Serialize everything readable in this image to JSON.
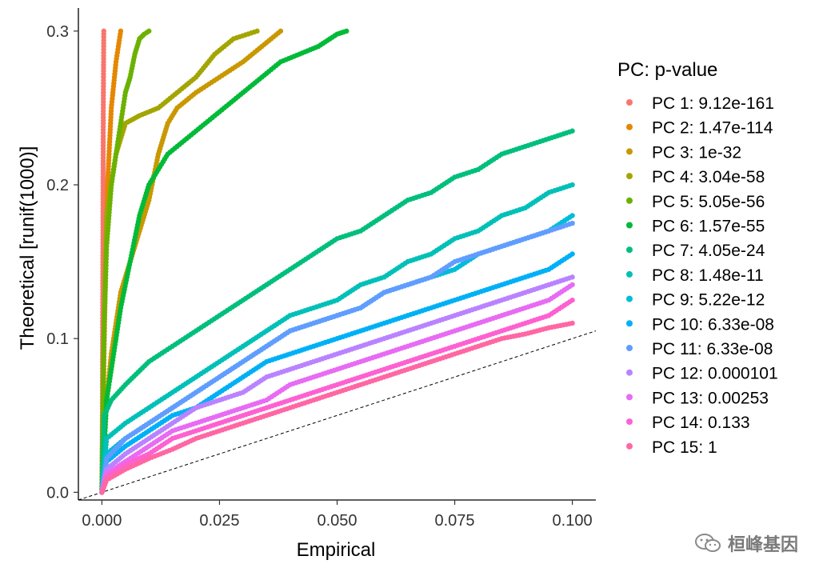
{
  "chart_data": {
    "type": "scatter",
    "title": "",
    "xlabel": "Empirical",
    "ylabel": "Theoretical [runif(1000)]",
    "xlim": [
      -0.005,
      0.105
    ],
    "ylim": [
      -0.005,
      0.315
    ],
    "x_ticks": [
      "0.000",
      "0.025",
      "0.050",
      "0.075",
      "0.100"
    ],
    "x_tick_values": [
      0,
      0.025,
      0.05,
      0.075,
      0.1
    ],
    "y_ticks": [
      "0.0",
      "0.1",
      "0.2",
      "0.3"
    ],
    "y_tick_values": [
      0,
      0.1,
      0.2,
      0.3
    ],
    "reference_line": {
      "intercept": 0,
      "slope": 1,
      "style": "dashed"
    },
    "legend": {
      "title": "PC: p-value",
      "position": "right"
    },
    "series": [
      {
        "name": "PC 1: 9.12e-161",
        "color": "#F8766D",
        "values": [
          [
            0,
            0
          ],
          [
            0.0001,
            0.05
          ],
          [
            0.0002,
            0.15
          ],
          [
            0.0003,
            0.25
          ],
          [
            0.0004,
            0.3
          ]
        ]
      },
      {
        "name": "PC 2: 1.47e-114",
        "color": "#E58700",
        "values": [
          [
            0,
            0
          ],
          [
            0.0004,
            0.08
          ],
          [
            0.0008,
            0.15
          ],
          [
            0.0012,
            0.2
          ],
          [
            0.002,
            0.25
          ],
          [
            0.003,
            0.28
          ],
          [
            0.004,
            0.3
          ]
        ]
      },
      {
        "name": "PC 3: 1e-32",
        "color": "#C99800",
        "values": [
          [
            0,
            0
          ],
          [
            0.0005,
            0.03
          ],
          [
            0.001,
            0.06
          ],
          [
            0.002,
            0.09
          ],
          [
            0.003,
            0.11
          ],
          [
            0.004,
            0.13
          ],
          [
            0.006,
            0.15
          ],
          [
            0.008,
            0.17
          ],
          [
            0.01,
            0.19
          ],
          [
            0.012,
            0.22
          ],
          [
            0.014,
            0.24
          ],
          [
            0.016,
            0.25
          ],
          [
            0.02,
            0.26
          ],
          [
            0.025,
            0.27
          ],
          [
            0.03,
            0.28
          ],
          [
            0.034,
            0.29
          ],
          [
            0.036,
            0.295
          ],
          [
            0.038,
            0.3
          ]
        ]
      },
      {
        "name": "PC 4: 3.04e-58",
        "color": "#A3A500",
        "values": [
          [
            0,
            0
          ],
          [
            0.0003,
            0.08
          ],
          [
            0.0007,
            0.14
          ],
          [
            0.001,
            0.18
          ],
          [
            0.002,
            0.2
          ],
          [
            0.003,
            0.22
          ],
          [
            0.005,
            0.24
          ],
          [
            0.008,
            0.245
          ],
          [
            0.012,
            0.25
          ],
          [
            0.016,
            0.26
          ],
          [
            0.02,
            0.27
          ],
          [
            0.024,
            0.285
          ],
          [
            0.028,
            0.295
          ],
          [
            0.033,
            0.3
          ]
        ]
      },
      {
        "name": "PC 5: 5.05e-56",
        "color": "#6BB100",
        "values": [
          [
            0,
            0
          ],
          [
            0.0004,
            0.1
          ],
          [
            0.001,
            0.16
          ],
          [
            0.002,
            0.2
          ],
          [
            0.003,
            0.22
          ],
          [
            0.004,
            0.24
          ],
          [
            0.005,
            0.26
          ],
          [
            0.006,
            0.27
          ],
          [
            0.007,
            0.285
          ],
          [
            0.008,
            0.295
          ],
          [
            0.009,
            0.298
          ],
          [
            0.01,
            0.3
          ]
        ]
      },
      {
        "name": "PC 6: 1.57e-55",
        "color": "#00BA38",
        "values": [
          [
            0,
            0
          ],
          [
            0.0005,
            0.03
          ],
          [
            0.001,
            0.06
          ],
          [
            0.002,
            0.08
          ],
          [
            0.003,
            0.1
          ],
          [
            0.004,
            0.12
          ],
          [
            0.006,
            0.15
          ],
          [
            0.008,
            0.18
          ],
          [
            0.01,
            0.2
          ],
          [
            0.014,
            0.22
          ],
          [
            0.018,
            0.23
          ],
          [
            0.022,
            0.24
          ],
          [
            0.026,
            0.25
          ],
          [
            0.03,
            0.26
          ],
          [
            0.034,
            0.27
          ],
          [
            0.038,
            0.28
          ],
          [
            0.042,
            0.285
          ],
          [
            0.046,
            0.29
          ],
          [
            0.05,
            0.298
          ],
          [
            0.052,
            0.3
          ]
        ]
      },
      {
        "name": "PC 7: 4.05e-24",
        "color": "#00BF7D",
        "values": [
          [
            0,
            0
          ],
          [
            0.0005,
            0.05
          ],
          [
            0.002,
            0.06
          ],
          [
            0.005,
            0.07
          ],
          [
            0.01,
            0.085
          ],
          [
            0.015,
            0.095
          ],
          [
            0.02,
            0.105
          ],
          [
            0.025,
            0.115
          ],
          [
            0.03,
            0.125
          ],
          [
            0.035,
            0.135
          ],
          [
            0.04,
            0.145
          ],
          [
            0.045,
            0.155
          ],
          [
            0.05,
            0.165
          ],
          [
            0.055,
            0.17
          ],
          [
            0.06,
            0.18
          ],
          [
            0.065,
            0.19
          ],
          [
            0.07,
            0.195
          ],
          [
            0.075,
            0.205
          ],
          [
            0.08,
            0.21
          ],
          [
            0.085,
            0.22
          ],
          [
            0.09,
            0.225
          ],
          [
            0.095,
            0.23
          ],
          [
            0.1,
            0.235
          ]
        ]
      },
      {
        "name": "PC 8: 1.48e-11",
        "color": "#00C0B8",
        "values": [
          [
            0,
            0
          ],
          [
            0.001,
            0.035
          ],
          [
            0.005,
            0.045
          ],
          [
            0.01,
            0.055
          ],
          [
            0.015,
            0.065
          ],
          [
            0.02,
            0.075
          ],
          [
            0.025,
            0.085
          ],
          [
            0.03,
            0.095
          ],
          [
            0.035,
            0.105
          ],
          [
            0.04,
            0.115
          ],
          [
            0.045,
            0.12
          ],
          [
            0.05,
            0.125
          ],
          [
            0.055,
            0.135
          ],
          [
            0.06,
            0.14
          ],
          [
            0.065,
            0.15
          ],
          [
            0.07,
            0.155
          ],
          [
            0.075,
            0.165
          ],
          [
            0.08,
            0.17
          ],
          [
            0.085,
            0.18
          ],
          [
            0.09,
            0.185
          ],
          [
            0.095,
            0.195
          ],
          [
            0.1,
            0.2
          ]
        ]
      },
      {
        "name": "PC 9: 5.22e-12",
        "color": "#00BCD8",
        "values": [
          [
            0,
            0
          ],
          [
            0.001,
            0.025
          ],
          [
            0.005,
            0.035
          ],
          [
            0.01,
            0.045
          ],
          [
            0.015,
            0.055
          ],
          [
            0.02,
            0.065
          ],
          [
            0.025,
            0.075
          ],
          [
            0.03,
            0.085
          ],
          [
            0.035,
            0.095
          ],
          [
            0.04,
            0.105
          ],
          [
            0.045,
            0.11
          ],
          [
            0.05,
            0.115
          ],
          [
            0.055,
            0.12
          ],
          [
            0.06,
            0.13
          ],
          [
            0.065,
            0.135
          ],
          [
            0.07,
            0.14
          ],
          [
            0.075,
            0.145
          ],
          [
            0.08,
            0.155
          ],
          [
            0.085,
            0.16
          ],
          [
            0.09,
            0.165
          ],
          [
            0.095,
            0.17
          ],
          [
            0.1,
            0.18
          ]
        ]
      },
      {
        "name": "PC 10: 6.33e-08",
        "color": "#00B0F6",
        "values": [
          [
            0,
            0
          ],
          [
            0.001,
            0.02
          ],
          [
            0.005,
            0.03
          ],
          [
            0.01,
            0.04
          ],
          [
            0.015,
            0.05
          ],
          [
            0.02,
            0.055
          ],
          [
            0.025,
            0.065
          ],
          [
            0.03,
            0.075
          ],
          [
            0.035,
            0.085
          ],
          [
            0.04,
            0.09
          ],
          [
            0.045,
            0.095
          ],
          [
            0.05,
            0.1
          ],
          [
            0.055,
            0.105
          ],
          [
            0.06,
            0.11
          ],
          [
            0.065,
            0.115
          ],
          [
            0.07,
            0.12
          ],
          [
            0.075,
            0.125
          ],
          [
            0.08,
            0.13
          ],
          [
            0.085,
            0.135
          ],
          [
            0.09,
            0.14
          ],
          [
            0.095,
            0.145
          ],
          [
            0.1,
            0.155
          ]
        ]
      },
      {
        "name": "PC 11: 6.33e-08",
        "color": "#619CFF",
        "values": [
          [
            0,
            0
          ],
          [
            0.001,
            0.022
          ],
          [
            0.005,
            0.035
          ],
          [
            0.01,
            0.045
          ],
          [
            0.015,
            0.055
          ],
          [
            0.02,
            0.065
          ],
          [
            0.025,
            0.075
          ],
          [
            0.03,
            0.085
          ],
          [
            0.035,
            0.095
          ],
          [
            0.04,
            0.105
          ],
          [
            0.045,
            0.11
          ],
          [
            0.05,
            0.115
          ],
          [
            0.055,
            0.12
          ],
          [
            0.06,
            0.13
          ],
          [
            0.065,
            0.135
          ],
          [
            0.07,
            0.14
          ],
          [
            0.075,
            0.15
          ],
          [
            0.08,
            0.155
          ],
          [
            0.085,
            0.16
          ],
          [
            0.09,
            0.165
          ],
          [
            0.095,
            0.17
          ],
          [
            0.1,
            0.175
          ]
        ]
      },
      {
        "name": "PC 12: 0.000101",
        "color": "#B983FF",
        "values": [
          [
            0,
            0
          ],
          [
            0.001,
            0.015
          ],
          [
            0.005,
            0.025
          ],
          [
            0.01,
            0.035
          ],
          [
            0.015,
            0.045
          ],
          [
            0.02,
            0.055
          ],
          [
            0.025,
            0.06
          ],
          [
            0.03,
            0.065
          ],
          [
            0.035,
            0.075
          ],
          [
            0.04,
            0.08
          ],
          [
            0.045,
            0.085
          ],
          [
            0.05,
            0.09
          ],
          [
            0.055,
            0.095
          ],
          [
            0.06,
            0.1
          ],
          [
            0.065,
            0.105
          ],
          [
            0.07,
            0.11
          ],
          [
            0.075,
            0.115
          ],
          [
            0.08,
            0.12
          ],
          [
            0.085,
            0.125
          ],
          [
            0.09,
            0.13
          ],
          [
            0.095,
            0.135
          ],
          [
            0.1,
            0.14
          ]
        ]
      },
      {
        "name": "PC 13: 0.00253",
        "color": "#E76BF3",
        "values": [
          [
            0,
            0
          ],
          [
            0.001,
            0.012
          ],
          [
            0.005,
            0.02
          ],
          [
            0.01,
            0.03
          ],
          [
            0.015,
            0.04
          ],
          [
            0.02,
            0.045
          ],
          [
            0.025,
            0.05
          ],
          [
            0.03,
            0.055
          ],
          [
            0.035,
            0.06
          ],
          [
            0.04,
            0.07
          ],
          [
            0.045,
            0.075
          ],
          [
            0.05,
            0.08
          ],
          [
            0.055,
            0.085
          ],
          [
            0.06,
            0.09
          ],
          [
            0.065,
            0.095
          ],
          [
            0.07,
            0.1
          ],
          [
            0.075,
            0.105
          ],
          [
            0.08,
            0.11
          ],
          [
            0.085,
            0.115
          ],
          [
            0.09,
            0.12
          ],
          [
            0.095,
            0.125
          ],
          [
            0.1,
            0.135
          ]
        ]
      },
      {
        "name": "PC 14: 0.133",
        "color": "#FD61D1",
        "values": [
          [
            0,
            0
          ],
          [
            0.001,
            0.01
          ],
          [
            0.005,
            0.018
          ],
          [
            0.01,
            0.025
          ],
          [
            0.015,
            0.035
          ],
          [
            0.02,
            0.04
          ],
          [
            0.025,
            0.045
          ],
          [
            0.03,
            0.05
          ],
          [
            0.035,
            0.055
          ],
          [
            0.04,
            0.06
          ],
          [
            0.045,
            0.065
          ],
          [
            0.05,
            0.07
          ],
          [
            0.055,
            0.075
          ],
          [
            0.06,
            0.08
          ],
          [
            0.065,
            0.085
          ],
          [
            0.07,
            0.09
          ],
          [
            0.075,
            0.095
          ],
          [
            0.08,
            0.1
          ],
          [
            0.085,
            0.105
          ],
          [
            0.09,
            0.11
          ],
          [
            0.095,
            0.115
          ],
          [
            0.1,
            0.125
          ]
        ]
      },
      {
        "name": "PC 15: 1",
        "color": "#FF67A4",
        "values": [
          [
            0,
            0
          ],
          [
            0.001,
            0.008
          ],
          [
            0.005,
            0.015
          ],
          [
            0.01,
            0.022
          ],
          [
            0.015,
            0.028
          ],
          [
            0.02,
            0.035
          ],
          [
            0.025,
            0.04
          ],
          [
            0.03,
            0.045
          ],
          [
            0.035,
            0.05
          ],
          [
            0.04,
            0.055
          ],
          [
            0.045,
            0.06
          ],
          [
            0.05,
            0.065
          ],
          [
            0.055,
            0.07
          ],
          [
            0.06,
            0.075
          ],
          [
            0.065,
            0.08
          ],
          [
            0.07,
            0.085
          ],
          [
            0.075,
            0.09
          ],
          [
            0.08,
            0.095
          ],
          [
            0.085,
            0.1
          ],
          [
            0.09,
            0.103
          ],
          [
            0.095,
            0.107
          ],
          [
            0.1,
            0.11
          ]
        ]
      }
    ]
  },
  "watermark": {
    "text": "桓峰基因",
    "icon": "wechat-icon"
  }
}
